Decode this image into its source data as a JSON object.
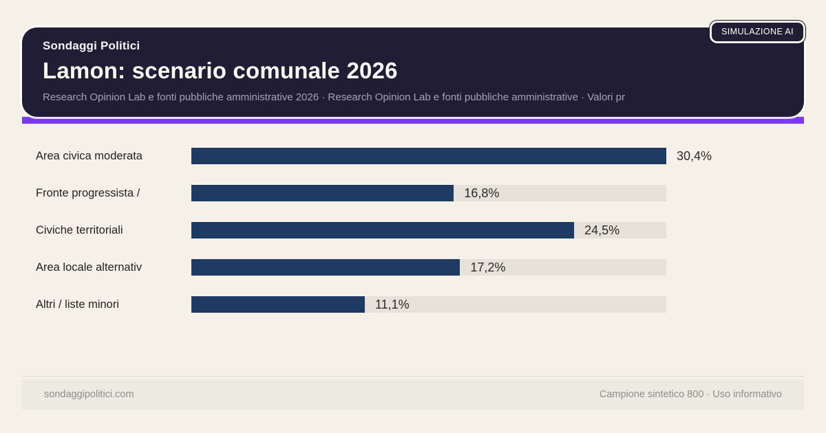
{
  "header": {
    "kicker": "Sondaggi Politici",
    "title": "Lamon: scenario comunale 2026",
    "subtitle": "Research Opinion Lab e fonti pubbliche amministrative 2026 · Research Opinion Lab e fonti pubbliche amministrative · Valori pr",
    "badge": "SIMULAZIONE AI"
  },
  "chart_data": {
    "type": "bar",
    "orientation": "horizontal",
    "title": "Lamon: scenario comunale 2026",
    "categories": [
      "Area civica moderata",
      "Fronte progressista /",
      "Civiche territoriali",
      "Area locale alternativ",
      "Altri / liste minori"
    ],
    "values": [
      30.4,
      16.8,
      24.5,
      17.2,
      11.1
    ],
    "value_labels": [
      "30,4%",
      "16,8%",
      "24,5%",
      "17,2%",
      "11,1%"
    ],
    "unit": "%",
    "max_value": 30.4,
    "grid": false,
    "legend": "none",
    "colors": {
      "bar": "#1f3a63",
      "track": "#e6e2d9"
    }
  },
  "footer": {
    "left": "sondaggipolitici.com",
    "right": "Campione sintetico 800 · Uso informativo"
  },
  "colors": {
    "background": "#f6f1e8",
    "header_bg": "#211d34",
    "accent": "#7c3aed",
    "label_text": "#23221f",
    "subtitle_text": "#a5a2b3",
    "footer_text": "#8f8d86"
  }
}
